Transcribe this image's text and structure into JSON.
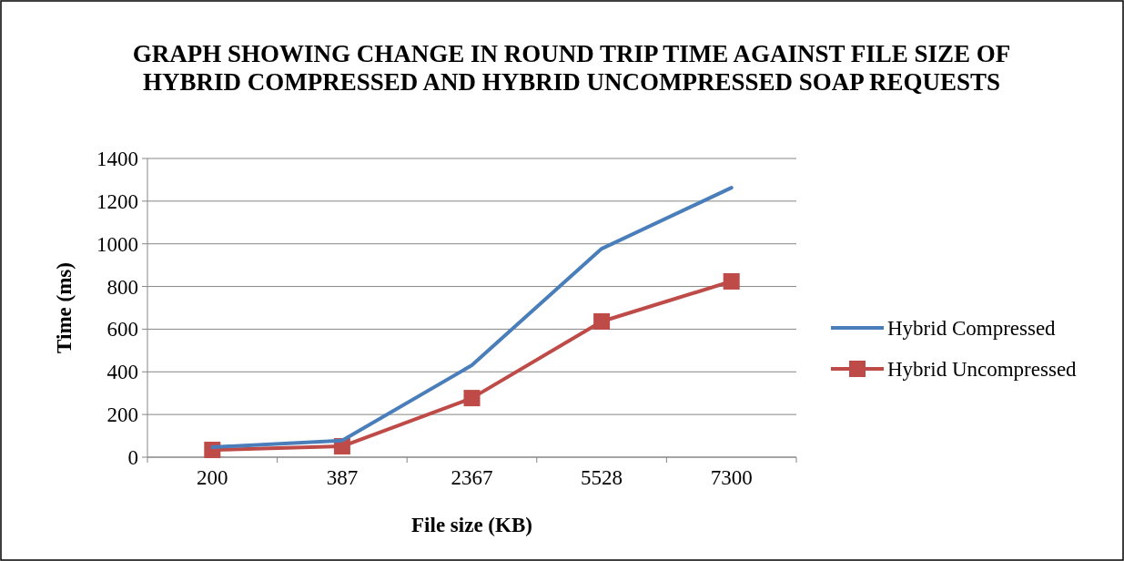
{
  "chart_data": {
    "type": "line",
    "title": "GRAPH SHOWING CHANGE IN ROUND TRIP TIME AGAINST FILE SIZE OF HYBRID COMPRESSED AND HYBRID UNCOMPRESSED SOAP REQUESTS",
    "xlabel": "File size (KB)",
    "ylabel": "Time (ms)",
    "categories": [
      "200",
      "387",
      "2367",
      "5528",
      "7300"
    ],
    "series": [
      {
        "name": "Hybrid Compressed",
        "color": "#4a7ebb",
        "marker": "none",
        "values": [
          47,
          78,
          431,
          977,
          1263
        ]
      },
      {
        "name": "Hybrid Uncompressed",
        "color": "#be4b48",
        "marker": "square",
        "values": [
          34,
          51,
          277,
          636,
          824
        ]
      }
    ],
    "ylim": [
      0,
      1400
    ],
    "yticks": [
      0,
      200,
      400,
      600,
      800,
      1000,
      1200,
      1400
    ],
    "grid": "y",
    "legend": "right"
  }
}
